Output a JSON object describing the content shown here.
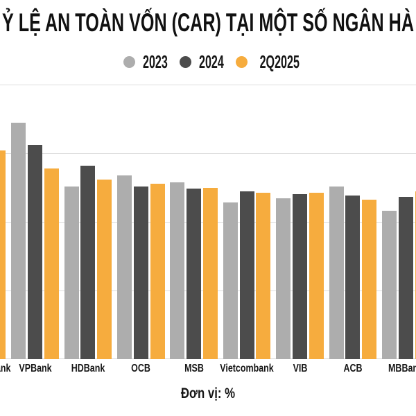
{
  "title": "Ỷ LỆ AN TOÀN VỐN (CAR) TẠI MỘT SỐ NGÂN HÀ",
  "unit_note": "Đơn vị: %",
  "colors": {
    "series_2023": "#ADADAD",
    "series_2024": "#4C4C4C",
    "series_2q2025": "#F6AC3E",
    "gridline": "#DCDCDC",
    "text": "#111111",
    "background": "#FFFFFF"
  },
  "chart_data": {
    "type": "bar",
    "title": "Ỷ LỆ AN TOÀN VỐN (CAR) TẠI MỘT SỐ NGÂN HÀ",
    "unit_label": "Đơn vị: %",
    "categories": [
      "Techcombank",
      "VPBank",
      "HDBank",
      "OCB",
      "MSB",
      "Vietcombank",
      "VIB",
      "ACB",
      "MBBank"
    ],
    "categories_visibility_note": "first category clipped to 'nk' and last clipped to 'MBBan' by image crop",
    "series": [
      {
        "name": "2023",
        "color": "#ADADAD",
        "values": [
          null,
          17.2,
          12.6,
          13.4,
          12.9,
          11.4,
          11.7,
          12.6,
          10.8
        ]
      },
      {
        "name": "2024",
        "color": "#4C4C4C",
        "values": [
          null,
          15.6,
          14.1,
          12.6,
          12.4,
          12.2,
          12.0,
          11.9,
          11.8
        ]
      },
      {
        "name": "2Q2025",
        "color": "#F6AC3E",
        "values": [
          15.2,
          13.9,
          13.1,
          12.8,
          12.5,
          12.1,
          12.1,
          11.6,
          12.2
        ]
      }
    ],
    "ylim": [
      0,
      20
    ],
    "gridline_step": 5,
    "grid": true,
    "y_tick_labels_visible": false,
    "legend_position": "top"
  }
}
